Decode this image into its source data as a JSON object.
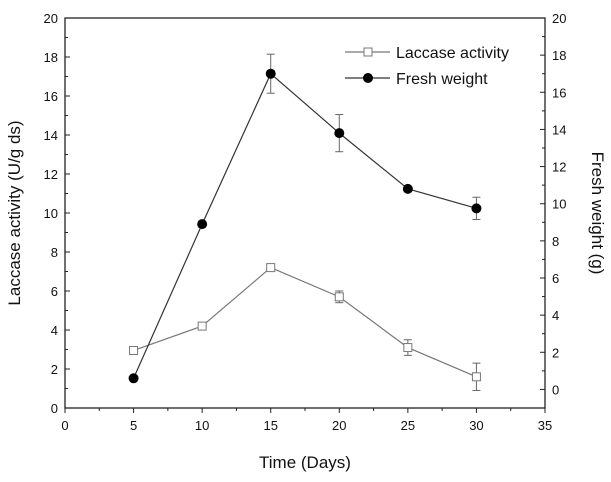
{
  "chart_data": {
    "type": "line",
    "title": "",
    "xlabel": "Time (Days)",
    "ylabel": "Laccase activity (U/g ds)",
    "y2label": "Fresh weight (g)",
    "xlim": [
      0,
      35
    ],
    "ylim": [
      0,
      20
    ],
    "y2lim": [
      -1,
      20
    ],
    "xticks": [
      "0",
      "5",
      "10",
      "15",
      "20",
      "25",
      "30",
      "35"
    ],
    "yticks": [
      "0",
      "2",
      "4",
      "6",
      "8",
      "10",
      "12",
      "14",
      "16",
      "18",
      "20"
    ],
    "y2ticks": [
      "0",
      "2",
      "4",
      "6",
      "8",
      "10",
      "12",
      "14",
      "16",
      "18",
      "20"
    ],
    "grid": false,
    "legend_position": "top-right",
    "x": [
      5,
      10,
      15,
      20,
      25,
      30
    ],
    "series": [
      {
        "name": "Laccase activity",
        "axis": "left",
        "marker": "open-square",
        "color": "#777777",
        "values": [
          2.95,
          4.2,
          7.2,
          5.7,
          3.1,
          1.6
        ],
        "errors": [
          0.1,
          0.1,
          0.1,
          0.3,
          0.4,
          0.7
        ]
      },
      {
        "name": "Fresh weight",
        "axis": "right",
        "marker": "filled-circle",
        "color": "#000000",
        "values": [
          0.6,
          8.9,
          17.0,
          13.8,
          10.8,
          9.75
        ],
        "errors": [
          0,
          0,
          1.05,
          1.0,
          0,
          0.6
        ]
      }
    ]
  }
}
